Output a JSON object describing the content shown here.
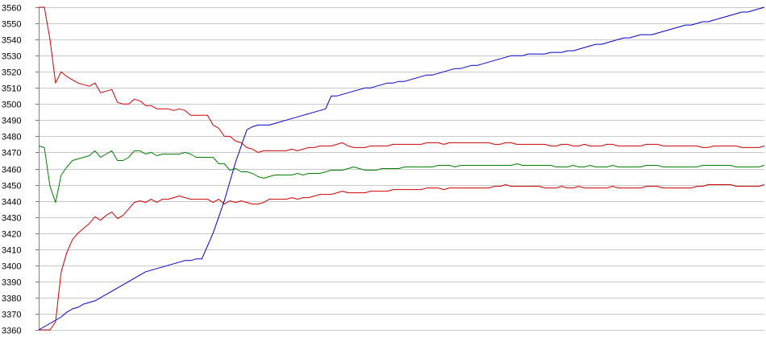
{
  "chart_data": {
    "type": "line",
    "title": "",
    "xlabel": "",
    "ylabel": "",
    "ylim": [
      3360,
      3560
    ],
    "yticks": [
      3360,
      3370,
      3380,
      3390,
      3400,
      3410,
      3420,
      3430,
      3440,
      3450,
      3460,
      3470,
      3480,
      3490,
      3500,
      3510,
      3520,
      3530,
      3540,
      3550,
      3560
    ],
    "grid": true,
    "legend": "none",
    "x": [
      0,
      1,
      2,
      3,
      4,
      5,
      6,
      7,
      8,
      9,
      10,
      11,
      12,
      13,
      14,
      15,
      16,
      17,
      18,
      19,
      20,
      21,
      22,
      23,
      24,
      25,
      26,
      27,
      28,
      29,
      30,
      31,
      32,
      33,
      34,
      35,
      36,
      37,
      38,
      39,
      40,
      41,
      42,
      43,
      44,
      45,
      46,
      47,
      48,
      49,
      50,
      51,
      52,
      53,
      54,
      55,
      56,
      57,
      58,
      59,
      60,
      61,
      62,
      63,
      64,
      65,
      66,
      67,
      68,
      69,
      70,
      71,
      72,
      73,
      74,
      75,
      76,
      77,
      78,
      79,
      80,
      81,
      82,
      83,
      84,
      85,
      86,
      87,
      88,
      89,
      90,
      91,
      92,
      93,
      94,
      95,
      96,
      97,
      98,
      99,
      100,
      101,
      102,
      103,
      104,
      105,
      106,
      107,
      108,
      109,
      110,
      111,
      112,
      113,
      114,
      115,
      116,
      117,
      118,
      119,
      120,
      121,
      122,
      123,
      124,
      125,
      126,
      127,
      128,
      129
    ],
    "series": [
      {
        "color": "#cc0000",
        "values": [
          3560,
          3560,
          3540,
          3513,
          3520,
          3517,
          3515,
          3513,
          3512,
          3511,
          3513,
          3507,
          3508,
          3509,
          3501,
          3500,
          3500,
          3503,
          3502,
          3499,
          3499,
          3497,
          3497,
          3497,
          3496,
          3497,
          3496,
          3493,
          3493,
          3493,
          3493,
          3487,
          3485,
          3480,
          3480,
          3477,
          3476,
          3473,
          3472,
          3470,
          3471,
          3471,
          3471,
          3471,
          3471,
          3472,
          3471,
          3472,
          3473,
          3473,
          3474,
          3474,
          3474,
          3475,
          3476,
          3474,
          3473,
          3473,
          3473,
          3474,
          3474,
          3474,
          3474,
          3475,
          3475,
          3475,
          3475,
          3475,
          3475,
          3476,
          3476,
          3476,
          3475,
          3476,
          3476,
          3476,
          3476,
          3476,
          3476,
          3476,
          3476,
          3475,
          3475,
          3476,
          3476,
          3475,
          3475,
          3475,
          3475,
          3475,
          3475,
          3474,
          3474,
          3475,
          3475,
          3474,
          3474,
          3475,
          3474,
          3474,
          3474,
          3475,
          3475,
          3474,
          3474,
          3474,
          3474,
          3474,
          3475,
          3475,
          3475,
          3474,
          3474,
          3474,
          3474,
          3474,
          3474,
          3474,
          3473,
          3473,
          3474,
          3474,
          3474,
          3474,
          3474,
          3473,
          3473,
          3473,
          3473,
          3474
        ]
      },
      {
        "color": "#008000",
        "values": [
          3474,
          3473,
          3449,
          3439,
          3456,
          3461,
          3465,
          3466,
          3467,
          3468,
          3471,
          3467,
          3469,
          3471,
          3465,
          3465,
          3467,
          3471,
          3471,
          3469,
          3470,
          3468,
          3469,
          3469,
          3469,
          3469,
          3470,
          3469,
          3467,
          3467,
          3467,
          3467,
          3463,
          3463,
          3459,
          3460,
          3458,
          3458,
          3457,
          3455,
          3454,
          3455,
          3456,
          3456,
          3456,
          3456,
          3457,
          3456,
          3457,
          3457,
          3457,
          3458,
          3459,
          3459,
          3459,
          3460,
          3461,
          3460,
          3459,
          3459,
          3459,
          3460,
          3460,
          3460,
          3460,
          3461,
          3461,
          3461,
          3461,
          3461,
          3461,
          3462,
          3462,
          3462,
          3461,
          3462,
          3462,
          3462,
          3462,
          3462,
          3462,
          3462,
          3462,
          3462,
          3462,
          3463,
          3462,
          3462,
          3462,
          3462,
          3462,
          3462,
          3461,
          3461,
          3461,
          3462,
          3461,
          3461,
          3462,
          3461,
          3461,
          3461,
          3462,
          3461,
          3461,
          3461,
          3461,
          3461,
          3462,
          3462,
          3462,
          3461,
          3461,
          3461,
          3461,
          3461,
          3461,
          3461,
          3462,
          3462,
          3462,
          3462,
          3462,
          3462,
          3461,
          3461,
          3461,
          3461,
          3461,
          3462
        ]
      },
      {
        "color": "#cc0000",
        "values": [
          3360,
          3360,
          3360,
          3365,
          3396,
          3408,
          3416,
          3420,
          3423,
          3426,
          3430,
          3428,
          3431,
          3433,
          3429,
          3431,
          3435,
          3439,
          3440,
          3439,
          3441,
          3439,
          3441,
          3441,
          3442,
          3443,
          3442,
          3441,
          3441,
          3441,
          3441,
          3439,
          3441,
          3438,
          3440,
          3439,
          3440,
          3439,
          3438,
          3438,
          3439,
          3441,
          3441,
          3441,
          3441,
          3442,
          3441,
          3442,
          3442,
          3443,
          3444,
          3444,
          3444,
          3445,
          3446,
          3445,
          3445,
          3445,
          3445,
          3446,
          3446,
          3446,
          3446,
          3447,
          3447,
          3447,
          3447,
          3447,
          3447,
          3448,
          3448,
          3448,
          3447,
          3448,
          3448,
          3448,
          3448,
          3448,
          3448,
          3448,
          3448,
          3449,
          3449,
          3450,
          3449,
          3449,
          3449,
          3449,
          3449,
          3449,
          3448,
          3448,
          3448,
          3449,
          3448,
          3448,
          3449,
          3448,
          3448,
          3448,
          3448,
          3448,
          3449,
          3448,
          3448,
          3448,
          3448,
          3448,
          3449,
          3449,
          3449,
          3448,
          3448,
          3448,
          3448,
          3448,
          3448,
          3449,
          3449,
          3450,
          3450,
          3450,
          3450,
          3450,
          3449,
          3449,
          3449,
          3449,
          3449,
          3450
        ]
      },
      {
        "color": "#0000cc",
        "values": [
          3360,
          3362,
          3364,
          3366,
          3368,
          3371,
          3373,
          3374,
          3376,
          3377,
          3378,
          3380,
          3382,
          3384,
          3386,
          3388,
          3390,
          3392,
          3394,
          3396,
          3397,
          3398,
          3399,
          3400,
          3401,
          3402,
          3403,
          3403,
          3404,
          3404,
          3412,
          3420,
          3430,
          3440,
          3452,
          3464,
          3474,
          3484,
          3486,
          3487,
          3487,
          3487,
          3488,
          3489,
          3490,
          3491,
          3492,
          3493,
          3494,
          3495,
          3496,
          3497,
          3505,
          3505,
          3506,
          3507,
          3508,
          3509,
          3510,
          3510,
          3511,
          3512,
          3513,
          3513,
          3514,
          3514,
          3515,
          3516,
          3517,
          3518,
          3518,
          3519,
          3520,
          3521,
          3522,
          3522,
          3523,
          3524,
          3524,
          3525,
          3526,
          3527,
          3528,
          3529,
          3530,
          3530,
          3530,
          3531,
          3531,
          3531,
          3531,
          3532,
          3532,
          3532,
          3533,
          3533,
          3534,
          3535,
          3536,
          3537,
          3537,
          3538,
          3539,
          3540,
          3541,
          3541,
          3542,
          3543,
          3543,
          3543,
          3544,
          3545,
          3546,
          3547,
          3548,
          3549,
          3549,
          3550,
          3551,
          3551,
          3552,
          3553,
          3554,
          3555,
          3556,
          3557,
          3557,
          3558,
          3559,
          3560
        ]
      }
    ]
  }
}
